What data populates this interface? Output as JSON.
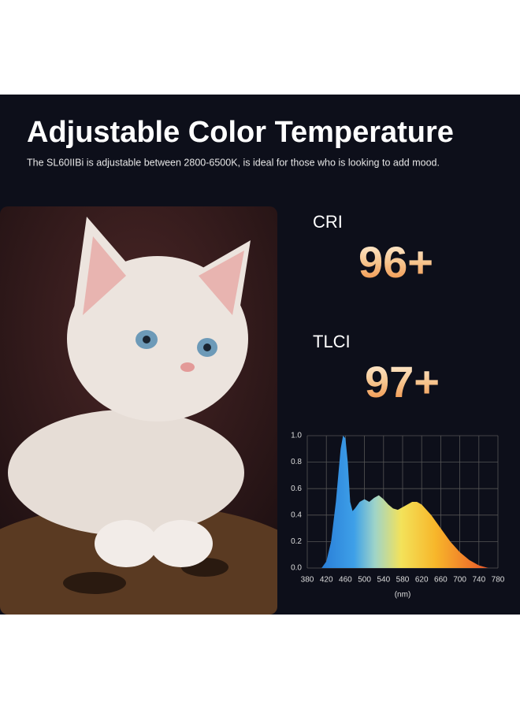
{
  "header": {
    "title": "Adjustable Color Temperature",
    "subtitle": "The SL60IIBi is adjustable between 2800-6500K, is ideal for those who is looking to add mood."
  },
  "specs": [
    {
      "label": "CRI",
      "value": "96+"
    },
    {
      "label": "TLCI",
      "value": "97+"
    }
  ],
  "chart_data": {
    "type": "area",
    "x_label": "(nm)",
    "x": [
      410,
      420,
      430,
      440,
      450,
      455,
      460,
      465,
      470,
      475,
      480,
      490,
      500,
      510,
      520,
      530,
      540,
      550,
      560,
      570,
      580,
      590,
      600,
      610,
      620,
      640,
      660,
      680,
      700,
      720,
      740,
      760
    ],
    "values": [
      0,
      0.05,
      0.2,
      0.5,
      0.9,
      1.0,
      0.98,
      0.8,
      0.5,
      0.43,
      0.45,
      0.5,
      0.52,
      0.5,
      0.53,
      0.55,
      0.52,
      0.48,
      0.45,
      0.44,
      0.46,
      0.48,
      0.5,
      0.5,
      0.48,
      0.4,
      0.3,
      0.2,
      0.12,
      0.06,
      0.02,
      0
    ],
    "xlim": [
      380,
      780
    ],
    "ylim": [
      0,
      1
    ],
    "xticks": [
      380,
      420,
      460,
      500,
      540,
      580,
      620,
      660,
      700,
      740,
      780
    ],
    "yticks": [
      {
        "value": 0,
        "label": "0.0"
      },
      0.2,
      0.4,
      0.6,
      0.8,
      {
        "value": 1,
        "label": "1.0"
      }
    ],
    "grid": true
  }
}
